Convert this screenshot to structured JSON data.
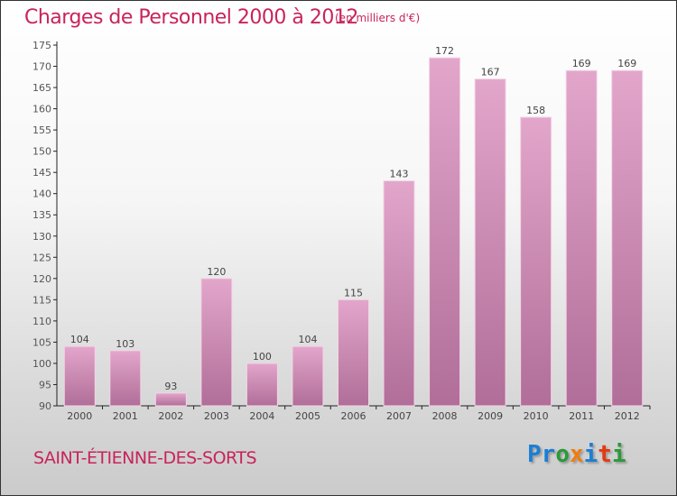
{
  "header": {
    "title": "Charges de Personnel 2000 à 2012",
    "unit": "(en milliers d'€)"
  },
  "footer": {
    "city": "SAINT-ÉTIENNE-DES-SORTS",
    "logo": "Proxiti",
    "logo_colors": [
      "#1a7fd4",
      "#1a7fd4",
      "#2a9a3a",
      "#f07c10",
      "#1a7fd4",
      "#e43a10",
      "#2a9a3a",
      "#1a7fd4"
    ]
  },
  "chart_data": {
    "type": "bar",
    "title": "Charges de Personnel 2000 à 2012",
    "subtitle": "(en milliers d'€)",
    "categories": [
      "2000",
      "2001",
      "2002",
      "2003",
      "2004",
      "2005",
      "2006",
      "2007",
      "2008",
      "2009",
      "2010",
      "2011",
      "2012"
    ],
    "values": [
      104,
      103,
      93,
      120,
      100,
      104,
      115,
      143,
      172,
      167,
      158,
      169,
      169
    ],
    "ylim": [
      90,
      175
    ],
    "yticks": [
      90,
      95,
      100,
      105,
      110,
      115,
      120,
      125,
      130,
      135,
      140,
      145,
      150,
      155,
      160,
      165,
      170,
      175
    ],
    "bar_color_top": "#e3a6cb",
    "bar_color_bottom": "#b06e98",
    "grid": false
  }
}
